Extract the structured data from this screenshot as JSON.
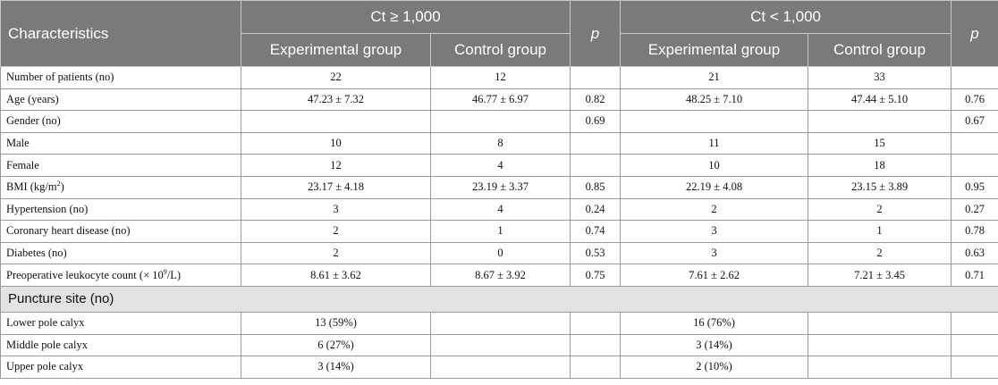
{
  "header": {
    "characteristics": "Characteristics",
    "group_a": "Ct ≥ 1,000",
    "group_b": "Ct < 1,000",
    "p": "p",
    "experimental": "Experimental group",
    "control": "Control group"
  },
  "rows": [
    {
      "label": "Number of patients (no)",
      "a_exp": "22",
      "a_ctl": "12",
      "a_p": "",
      "b_exp": "21",
      "b_ctl": "33",
      "b_p": ""
    },
    {
      "label": "Age (years)",
      "a_exp": "47.23 ± 7.32",
      "a_ctl": "46.77 ± 6.97",
      "a_p": "0.82",
      "b_exp": "48.25 ± 7.10",
      "b_ctl": "47.44 ± 5.10",
      "b_p": "0.76"
    },
    {
      "label": "Gender (no)",
      "a_exp": "",
      "a_ctl": "",
      "a_p": "0.69",
      "b_exp": "",
      "b_ctl": "",
      "b_p": "0.67"
    },
    {
      "label": "Male",
      "a_exp": "10",
      "a_ctl": "8",
      "a_p": "",
      "b_exp": "11",
      "b_ctl": "15",
      "b_p": ""
    },
    {
      "label": "Female",
      "a_exp": "12",
      "a_ctl": "4",
      "a_p": "",
      "b_exp": "10",
      "b_ctl": "18",
      "b_p": ""
    },
    {
      "label_pre": "BMI (kg/m",
      "label_sup": "2",
      "label_post": ")",
      "a_exp": "23.17 ± 4.18",
      "a_ctl": "23.19 ± 3.37",
      "a_p": "0.85",
      "b_exp": "22.19 ± 4.08",
      "b_ctl": "23.15 ± 3.89",
      "b_p": "0.95"
    },
    {
      "label": "Hypertension (no)",
      "a_exp": "3",
      "a_ctl": "4",
      "a_p": "0.24",
      "b_exp": "2",
      "b_ctl": "2",
      "b_p": "0.27"
    },
    {
      "label": "Coronary heart disease (no)",
      "a_exp": "2",
      "a_ctl": "1",
      "a_p": "0.74",
      "b_exp": "3",
      "b_ctl": "1",
      "b_p": "0.78"
    },
    {
      "label": "Diabetes (no)",
      "a_exp": "2",
      "a_ctl": "0",
      "a_p": "0.53",
      "b_exp": "3",
      "b_ctl": "2",
      "b_p": "0.63"
    },
    {
      "label_pre": "Preoperative leukocyte count (× 10",
      "label_sup": "9",
      "label_post": "/L)",
      "a_exp": "8.61 ± 3.62",
      "a_ctl": "8.67 ± 3.92",
      "a_p": "0.75",
      "b_exp": "7.61 ± 2.62",
      "b_ctl": "7.21 ± 3.45",
      "b_p": "0.71"
    }
  ],
  "section": "Puncture site (no)",
  "puncture_rows": [
    {
      "label": "Lower pole calyx",
      "a_exp": "13 (59%)",
      "a_ctl": "",
      "a_p": "",
      "b_exp": "16 (76%)",
      "b_ctl": "",
      "b_p": ""
    },
    {
      "label": "Middle pole calyx",
      "a_exp": "6 (27%)",
      "a_ctl": "",
      "a_p": "",
      "b_exp": "3 (14%)",
      "b_ctl": "",
      "b_p": ""
    },
    {
      "label": "Upper pole calyx",
      "a_exp": "3 (14%)",
      "a_ctl": "",
      "a_p": "",
      "b_exp": "2 (10%)",
      "b_ctl": "",
      "b_p": ""
    }
  ]
}
